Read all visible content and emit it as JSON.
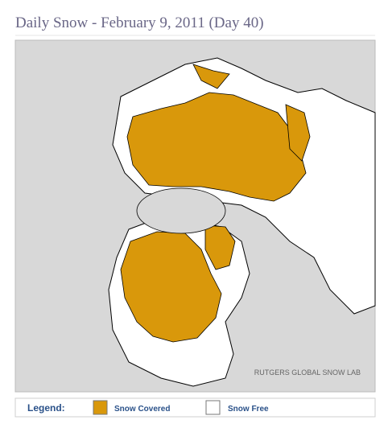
{
  "title": "Daily Snow - February 9, 2011 (Day 40)",
  "credit": "RUTGERS GLOBAL SNOW LAB",
  "legend": {
    "label": "Legend:",
    "items": [
      {
        "name": "Snow Covered",
        "color": "#d9980b"
      },
      {
        "name": "Snow Free",
        "color": "#ffffff"
      }
    ]
  }
}
